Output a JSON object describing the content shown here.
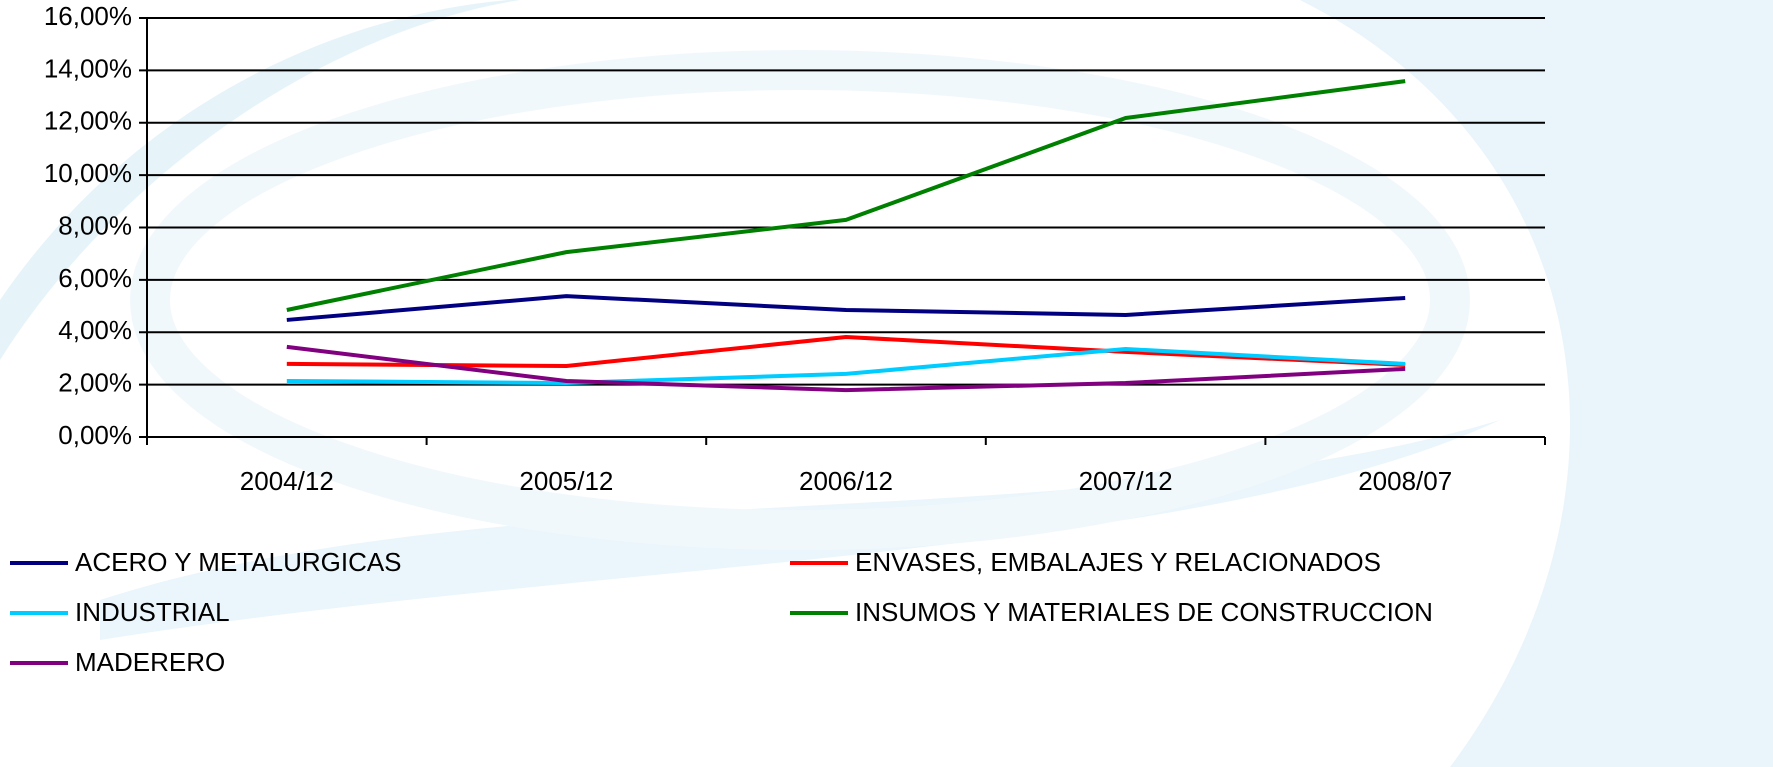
{
  "chart_data": {
    "type": "line",
    "categories": [
      "2004/12",
      "2005/12",
      "2006/12",
      "2007/12",
      "2008/07"
    ],
    "series": [
      {
        "name": "ACERO Y METALURGICAS",
        "color": "#000080",
        "values": [
          4.47,
          5.38,
          4.85,
          4.66,
          5.31
        ]
      },
      {
        "name": "ENVASES, EMBALAJES Y RELACIONADOS",
        "color": "#ff0000",
        "values": [
          2.79,
          2.71,
          3.82,
          3.25,
          2.75
        ]
      },
      {
        "name": "INDUSTRIAL",
        "color": "#00ccff",
        "values": [
          2.14,
          2.06,
          2.41,
          3.36,
          2.79
        ]
      },
      {
        "name": "INSUMOS Y MATERIALES DE CONSTRUCCION",
        "color": "#008000",
        "values": [
          4.85,
          7.06,
          8.29,
          12.18,
          13.59
        ]
      },
      {
        "name": "MADERERO",
        "color": "#800080",
        "values": [
          3.44,
          2.14,
          1.79,
          2.06,
          2.6
        ]
      }
    ],
    "ylim": [
      0,
      16
    ],
    "yticks": [
      {
        "value": 0,
        "label": "0,00%"
      },
      {
        "value": 2,
        "label": "2,00%"
      },
      {
        "value": 4,
        "label": "4,00%"
      },
      {
        "value": 6,
        "label": "6,00%"
      },
      {
        "value": 8,
        "label": "8,00%"
      },
      {
        "value": 10,
        "label": "10,00%"
      },
      {
        "value": 12,
        "label": "12,00%"
      },
      {
        "value": 14,
        "label": "14,00%"
      },
      {
        "value": 16,
        "label": "16,00%"
      }
    ],
    "grid": true,
    "legend": "bottom"
  }
}
